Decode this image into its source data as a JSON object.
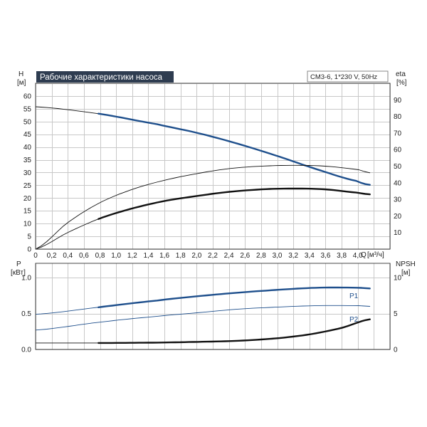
{
  "title": "Рабочие характеристики насоса",
  "model": "CM3-6, 1*230 V, 50Hz",
  "colors": {
    "blue": "#1e4f8c",
    "black": "#111111",
    "title_bg": "#2e3c50",
    "grid": "#c8c8c8"
  },
  "chart_data": [
    {
      "type": "line",
      "panel": "head-efficiency",
      "left_axis": {
        "label": "H",
        "unit": "[м]",
        "ticks": [
          0,
          5,
          10,
          15,
          20,
          25,
          30,
          35,
          40,
          45,
          50,
          55,
          60
        ]
      },
      "right_axis": {
        "label": "eta",
        "unit": "[%]",
        "ticks": [
          0,
          10,
          20,
          30,
          40,
          50,
          60,
          70,
          80,
          90
        ]
      },
      "x_axis": {
        "label": "Q",
        "unit": "[м³/ч]",
        "ticks": [
          "0",
          "0,2",
          "0,4",
          "0,6",
          "0,8",
          "1,0",
          "1,2",
          "1,4",
          "1,6",
          "1,8",
          "2,0",
          "2,2",
          "2,4",
          "2,6",
          "2,8",
          "3,0",
          "3,2",
          "3,4",
          "3,6",
          "3,8",
          "4,0"
        ]
      },
      "xlim": [
        0,
        4.4
      ],
      "ylim": [
        0,
        65
      ],
      "ylim_right": [
        0,
        100
      ],
      "grid": true,
      "series": [
        {
          "axis": "left",
          "style": "thin-black",
          "x": [
            0,
            0.8,
            1.5,
            2.0,
            2.5,
            3.0,
            3.5,
            4.0,
            4.15
          ],
          "y": [
            55.8,
            53.0,
            49.0,
            45.6,
            41.4,
            36.5,
            31.2,
            26.6,
            25.2
          ]
        },
        {
          "axis": "left",
          "style": "blue",
          "range": [
            0.78,
            4.15
          ],
          "x": [
            0,
            0.8,
            1.5,
            2.0,
            2.5,
            3.0,
            3.5,
            4.0,
            4.15
          ],
          "y": [
            55.8,
            53.0,
            49.0,
            45.6,
            41.4,
            36.5,
            31.2,
            26.6,
            25.2
          ]
        },
        {
          "axis": "right",
          "style": "thin-black",
          "x": [
            0,
            0.4,
            0.8,
            1.2,
            1.6,
            2.0,
            2.4,
            2.8,
            3.2,
            3.6,
            4.0,
            4.15
          ],
          "y": [
            0,
            16,
            28,
            36,
            41.5,
            45.5,
            48.5,
            50,
            50.5,
            50,
            48,
            46
          ]
        },
        {
          "axis": "right",
          "style": "thin-black",
          "x": [
            0,
            0.4,
            0.8,
            1.2,
            1.6,
            2.0,
            2.4,
            2.8,
            3.2,
            3.6,
            4.0,
            4.15
          ],
          "y": [
            0,
            10,
            18.5,
            24.5,
            29,
            32,
            34.5,
            36,
            36.5,
            36,
            34,
            33
          ]
        },
        {
          "axis": "right",
          "style": "bold-black",
          "range": [
            0.78,
            4.15
          ],
          "x": [
            0,
            0.4,
            0.8,
            1.2,
            1.6,
            2.0,
            2.4,
            2.8,
            3.2,
            3.6,
            4.0,
            4.15
          ],
          "y": [
            0,
            10,
            18.5,
            24.5,
            29,
            32,
            34.5,
            36,
            36.5,
            36,
            34,
            33
          ]
        }
      ]
    },
    {
      "type": "line",
      "panel": "power-npsh",
      "left_axis": {
        "label": "P",
        "unit": "[кВт]",
        "ticks": [
          "0.0",
          "0.5",
          "1.0"
        ]
      },
      "right_axis": {
        "label": "NPSH",
        "unit": "[м]",
        "ticks": [
          "0",
          "5",
          "10"
        ]
      },
      "xlim": [
        0,
        4.4
      ],
      "ylim": [
        0,
        1.2
      ],
      "ylim_right": [
        0,
        12
      ],
      "grid": true,
      "series": [
        {
          "name": "P1",
          "axis": "left",
          "style": "thin-blue",
          "x": [
            0,
            0.8,
            1.5,
            2.0,
            2.5,
            3.0,
            3.5,
            4.0,
            4.15
          ],
          "y": [
            0.49,
            0.59,
            0.68,
            0.74,
            0.79,
            0.83,
            0.86,
            0.86,
            0.85
          ]
        },
        {
          "name": "",
          "axis": "left",
          "style": "blue",
          "range": [
            0.78,
            4.15
          ],
          "x": [
            0,
            0.8,
            1.5,
            2.0,
            2.5,
            3.0,
            3.5,
            4.0,
            4.15
          ],
          "y": [
            0.49,
            0.59,
            0.68,
            0.74,
            0.79,
            0.83,
            0.86,
            0.86,
            0.85
          ]
        },
        {
          "name": "P2",
          "axis": "left",
          "style": "thin-blue",
          "x": [
            0,
            0.8,
            1.5,
            2.0,
            2.5,
            3.0,
            3.5,
            4.0,
            4.15
          ],
          "y": [
            0.27,
            0.38,
            0.46,
            0.51,
            0.56,
            0.59,
            0.61,
            0.61,
            0.6
          ]
        },
        {
          "name": "",
          "axis": "right",
          "style": "thin-black",
          "x": [
            0,
            0.78
          ],
          "y": [
            0.9,
            0.9
          ]
        },
        {
          "name": "",
          "axis": "right",
          "style": "bold-black",
          "range": [
            0.78,
            4.15
          ],
          "x": [
            0.78,
            1.5,
            2.0,
            2.5,
            3.0,
            3.4,
            3.8,
            4.15
          ],
          "y": [
            0.9,
            0.95,
            1.05,
            1.2,
            1.55,
            2.1,
            3.0,
            4.2
          ]
        }
      ]
    }
  ]
}
